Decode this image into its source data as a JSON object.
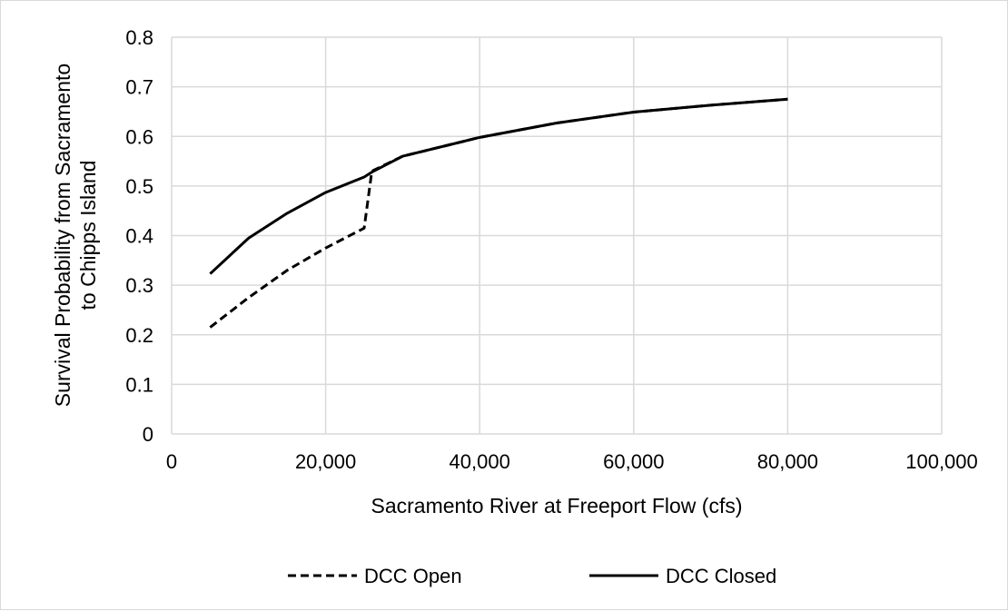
{
  "chart_data": {
    "type": "line",
    "title": "",
    "xlabel": "Sacramento River at Freeport Flow (cfs)",
    "ylabel": [
      "Survival Probability from Sacramento",
      "to Chipps Island"
    ],
    "xlim": [
      0,
      100000
    ],
    "ylim": [
      0,
      0.8
    ],
    "x_ticks": [
      "0",
      "20,000",
      "40,000",
      "60,000",
      "80,000",
      "100,000"
    ],
    "y_ticks": [
      "0",
      "0.1",
      "0.2",
      "0.3",
      "0.4",
      "0.5",
      "0.6",
      "0.7",
      "0.8"
    ],
    "x_tick_values": [
      0,
      20000,
      40000,
      60000,
      80000,
      100000
    ],
    "y_tick_values": [
      0,
      0.1,
      0.2,
      0.3,
      0.4,
      0.5,
      0.6,
      0.7,
      0.8
    ],
    "grid": true,
    "legend_position": "bottom",
    "series": [
      {
        "name": "DCC Open",
        "style": "dashed",
        "color": "#000000",
        "x": [
          5000,
          10000,
          15000,
          20000,
          25000,
          26000,
          30000,
          40000,
          50000,
          60000,
          70000,
          80000
        ],
        "y": [
          0.215,
          0.275,
          0.33,
          0.375,
          0.415,
          0.53,
          0.56,
          0.598,
          0.627,
          0.649,
          0.663,
          0.675
        ]
      },
      {
        "name": "DCC Closed",
        "style": "solid",
        "color": "#000000",
        "x": [
          5000,
          10000,
          15000,
          20000,
          25000,
          26000,
          30000,
          40000,
          50000,
          60000,
          70000,
          80000
        ],
        "y": [
          0.323,
          0.395,
          0.445,
          0.487,
          0.518,
          0.528,
          0.56,
          0.598,
          0.627,
          0.649,
          0.663,
          0.675
        ]
      }
    ]
  }
}
